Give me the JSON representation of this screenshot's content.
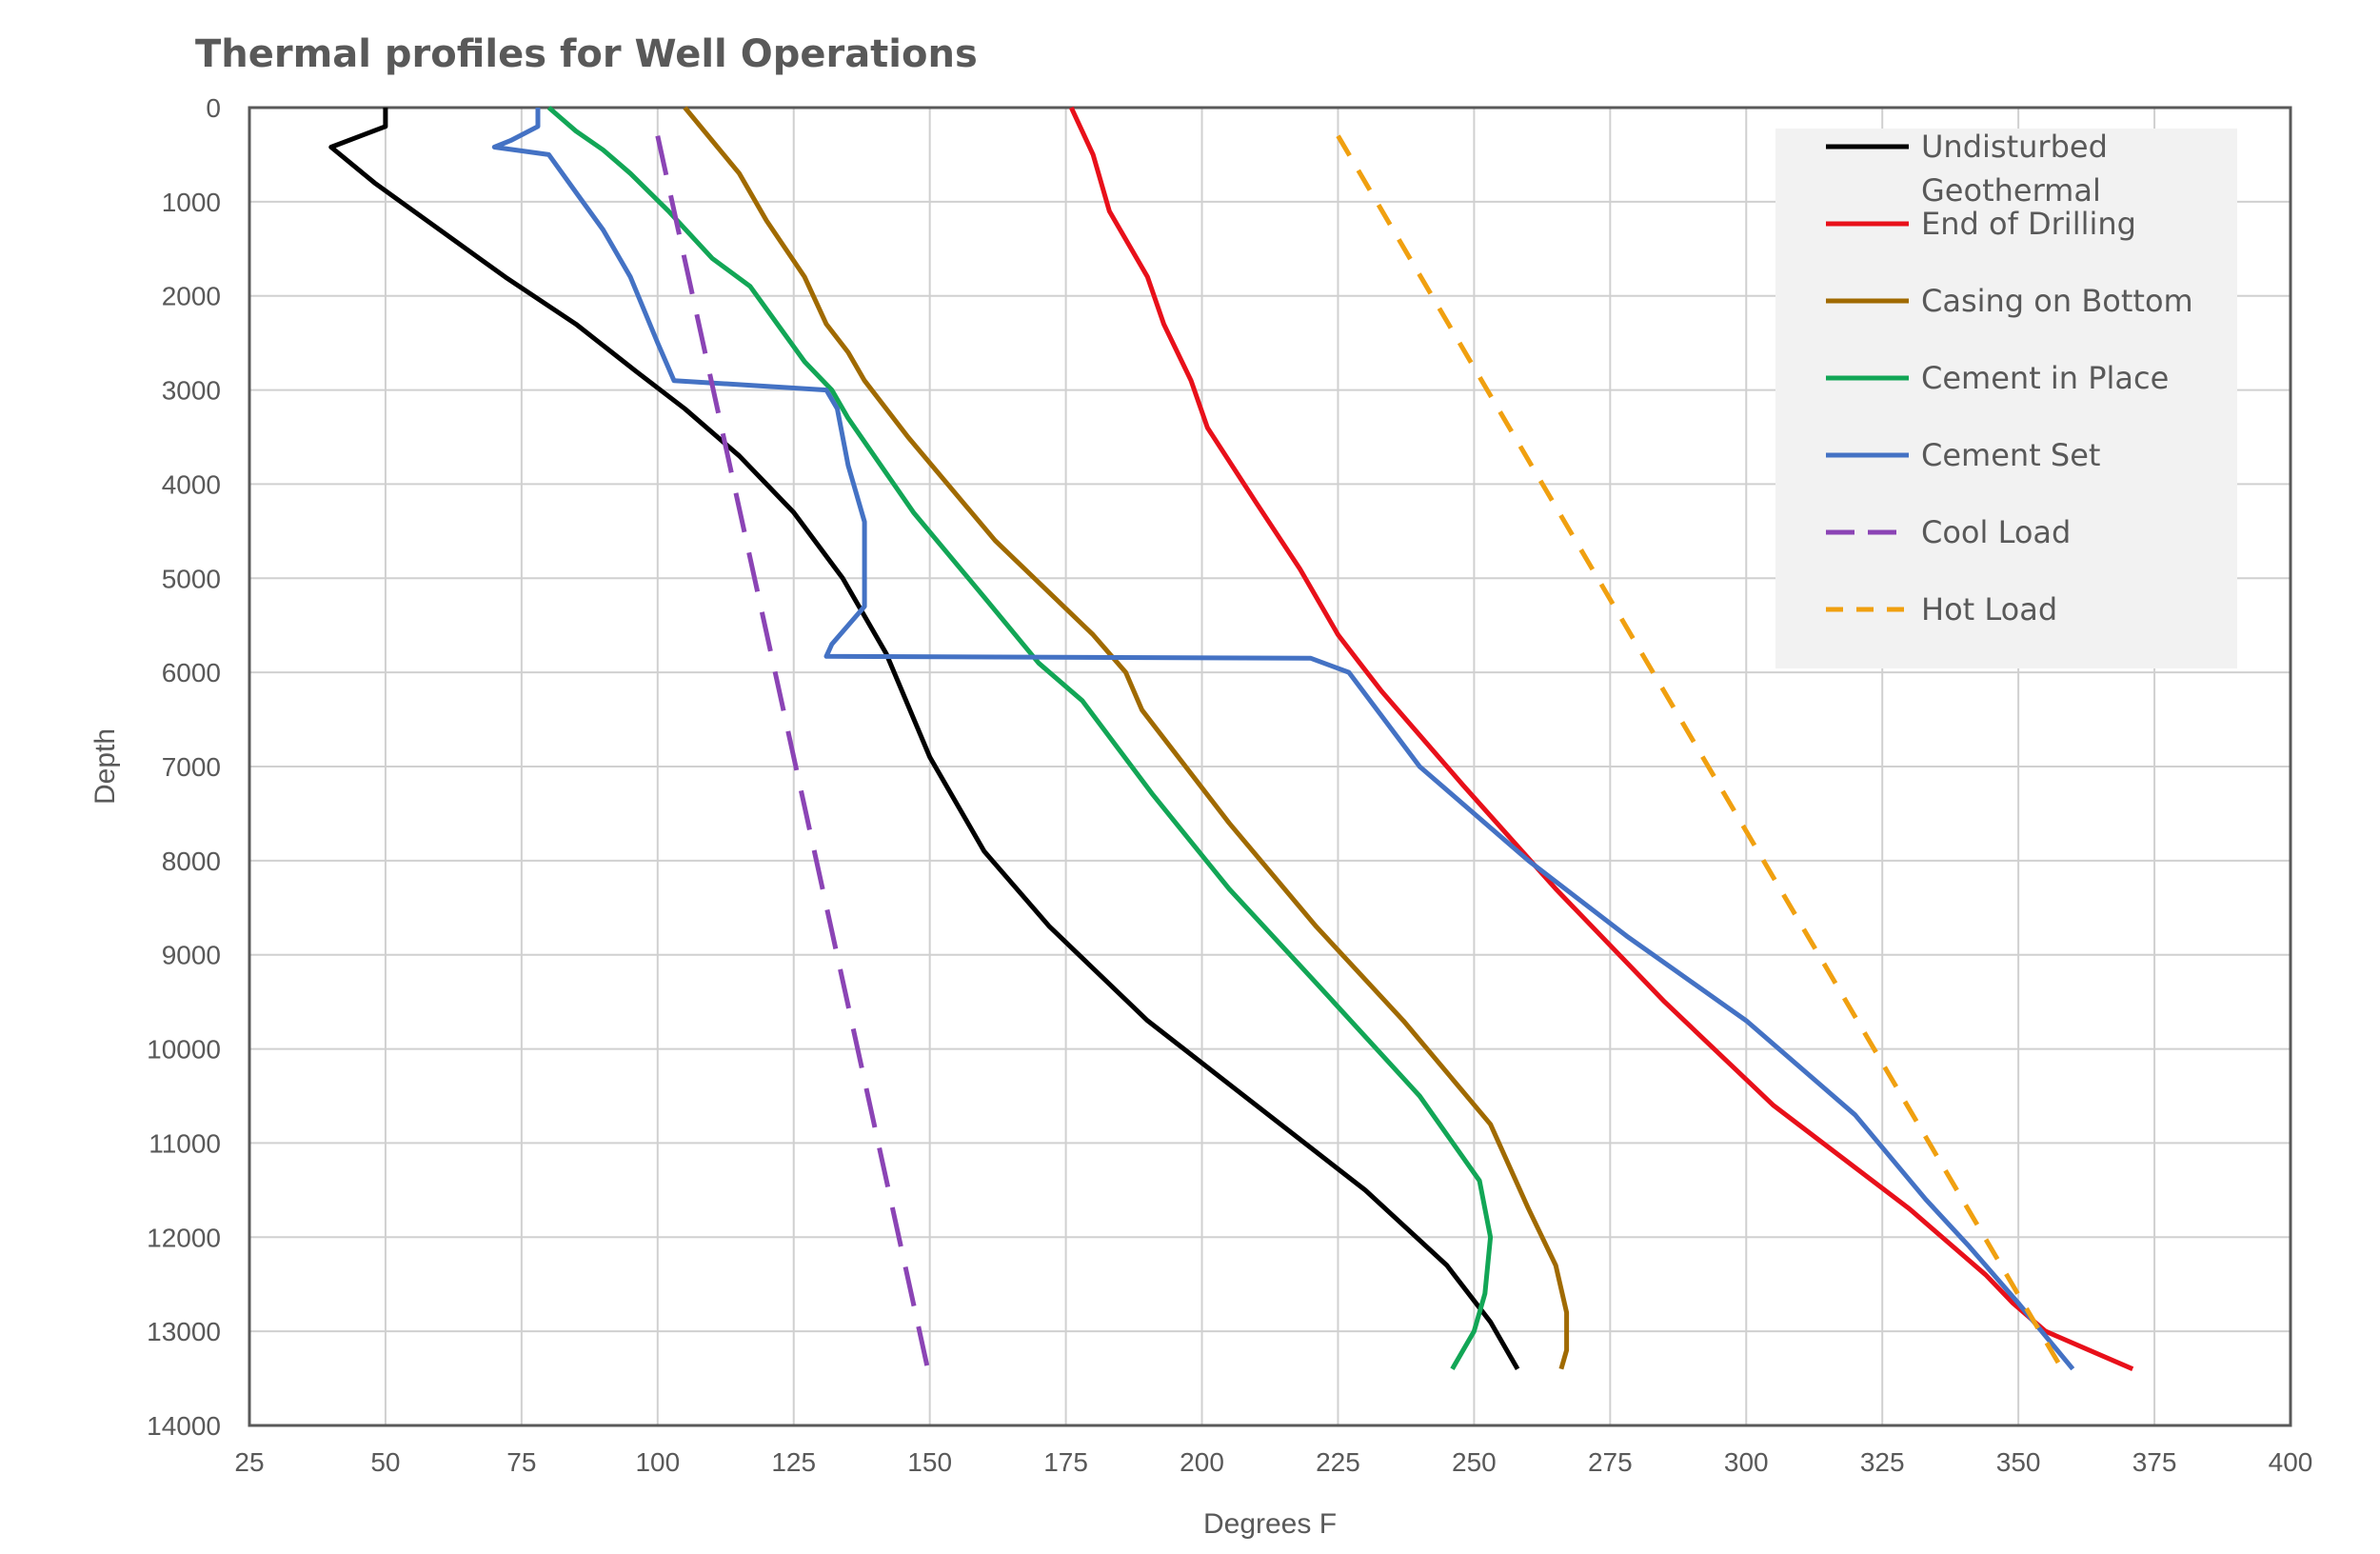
{
  "chart_data": {
    "type": "line",
    "title": "Thermal profiles for Well Operations",
    "xlabel": "Degrees F",
    "ylabel": "Depth",
    "xlim": [
      25,
      400
    ],
    "ylim": [
      0,
      14000
    ],
    "y_inverted": true,
    "x_ticks": [
      25,
      50,
      75,
      100,
      125,
      150,
      175,
      200,
      225,
      250,
      275,
      300,
      325,
      350,
      375,
      400
    ],
    "y_ticks": [
      0,
      1000,
      2000,
      3000,
      4000,
      5000,
      6000,
      7000,
      8000,
      9000,
      10000,
      11000,
      12000,
      13000,
      14000
    ],
    "grid": true,
    "legend_position": "top-right",
    "series": [
      {
        "name": "Undisturbed Geothermal",
        "legend_lines": [
          "Undisturbed",
          "Geothermal"
        ],
        "color": "#000000",
        "dash": "solid",
        "points": [
          [
            50,
            0
          ],
          [
            50,
            200
          ],
          [
            40,
            420
          ],
          [
            48,
            800
          ],
          [
            60,
            1300
          ],
          [
            72,
            1800
          ],
          [
            85,
            2300
          ],
          [
            96,
            2800
          ],
          [
            105,
            3200
          ],
          [
            115,
            3700
          ],
          [
            125,
            4300
          ],
          [
            134,
            5000
          ],
          [
            142,
            5800
          ],
          [
            150,
            6900
          ],
          [
            160,
            7900
          ],
          [
            172,
            8700
          ],
          [
            190,
            9700
          ],
          [
            210,
            10600
          ],
          [
            230,
            11500
          ],
          [
            245,
            12300
          ],
          [
            253,
            12900
          ],
          [
            258,
            13400
          ]
        ]
      },
      {
        "name": "End of Drilling",
        "color": "#e8101a",
        "dash": "solid",
        "points": [
          [
            176,
            0
          ],
          [
            180,
            500
          ],
          [
            183,
            1100
          ],
          [
            190,
            1800
          ],
          [
            193,
            2300
          ],
          [
            198,
            2900
          ],
          [
            201,
            3400
          ],
          [
            210,
            4200
          ],
          [
            218,
            4900
          ],
          [
            225,
            5600
          ],
          [
            229,
            5900
          ],
          [
            233,
            6200
          ],
          [
            248,
            7200
          ],
          [
            265,
            8300
          ],
          [
            285,
            9500
          ],
          [
            305,
            10600
          ],
          [
            330,
            11700
          ],
          [
            340,
            12200
          ],
          [
            344,
            12400
          ],
          [
            349,
            12700
          ],
          [
            355,
            13000
          ],
          [
            363,
            13200
          ],
          [
            371,
            13400
          ]
        ]
      },
      {
        "name": "Casing on Bottom",
        "color": "#a06a00",
        "dash": "solid",
        "points": [
          [
            105,
            0
          ],
          [
            110,
            350
          ],
          [
            115,
            700
          ],
          [
            120,
            1200
          ],
          [
            127,
            1800
          ],
          [
            131,
            2300
          ],
          [
            135,
            2600
          ],
          [
            138,
            2900
          ],
          [
            146,
            3500
          ],
          [
            162,
            4600
          ],
          [
            180,
            5600
          ],
          [
            186,
            6000
          ],
          [
            189,
            6400
          ],
          [
            205,
            7600
          ],
          [
            221,
            8700
          ],
          [
            237,
            9700
          ],
          [
            253,
            10800
          ],
          [
            260,
            11700
          ],
          [
            265,
            12300
          ],
          [
            267,
            12800
          ],
          [
            267,
            13200
          ],
          [
            266,
            13400
          ]
        ]
      },
      {
        "name": "Cement in Place",
        "color": "#12a656",
        "dash": "solid",
        "points": [
          [
            80,
            0
          ],
          [
            85,
            250
          ],
          [
            90,
            450
          ],
          [
            95,
            700
          ],
          [
            102,
            1100
          ],
          [
            110,
            1600
          ],
          [
            117,
            1900
          ],
          [
            122,
            2300
          ],
          [
            127,
            2700
          ],
          [
            132,
            3000
          ],
          [
            135,
            3300
          ],
          [
            147,
            4300
          ],
          [
            160,
            5200
          ],
          [
            170,
            5900
          ],
          [
            178,
            6300
          ],
          [
            191,
            7300
          ],
          [
            205,
            8300
          ],
          [
            221,
            9300
          ],
          [
            240,
            10500
          ],
          [
            251,
            11400
          ],
          [
            253,
            12000
          ],
          [
            252,
            12600
          ],
          [
            250,
            13000
          ],
          [
            246,
            13400
          ]
        ]
      },
      {
        "name": "Cement Set",
        "color": "#4472c4",
        "dash": "solid",
        "points": [
          [
            78,
            0
          ],
          [
            78,
            200
          ],
          [
            73,
            350
          ],
          [
            70,
            420
          ],
          [
            80,
            500
          ],
          [
            85,
            900
          ],
          [
            90,
            1300
          ],
          [
            95,
            1800
          ],
          [
            100,
            2500
          ],
          [
            103,
            2900
          ],
          [
            131,
            3000
          ],
          [
            133,
            3200
          ],
          [
            135,
            3800
          ],
          [
            138,
            4400
          ],
          [
            138,
            5000
          ],
          [
            138,
            5300
          ],
          [
            132,
            5700
          ],
          [
            131,
            5830
          ],
          [
            220,
            5850
          ],
          [
            227,
            6000
          ],
          [
            240,
            7000
          ],
          [
            260,
            8000
          ],
          [
            278,
            8800
          ],
          [
            300,
            9700
          ],
          [
            320,
            10700
          ],
          [
            333,
            11600
          ],
          [
            341,
            12100
          ],
          [
            350,
            12700
          ],
          [
            360,
            13400
          ]
        ]
      },
      {
        "name": "Cool Load",
        "color": "#8b44b5",
        "dash": "long-dash",
        "points": [
          [
            100,
            300
          ],
          [
            150,
            13500
          ]
        ]
      },
      {
        "name": "Hot Load",
        "color": "#f0a010",
        "dash": "dash",
        "points": [
          [
            225,
            300
          ],
          [
            358,
            13400
          ]
        ]
      }
    ]
  }
}
